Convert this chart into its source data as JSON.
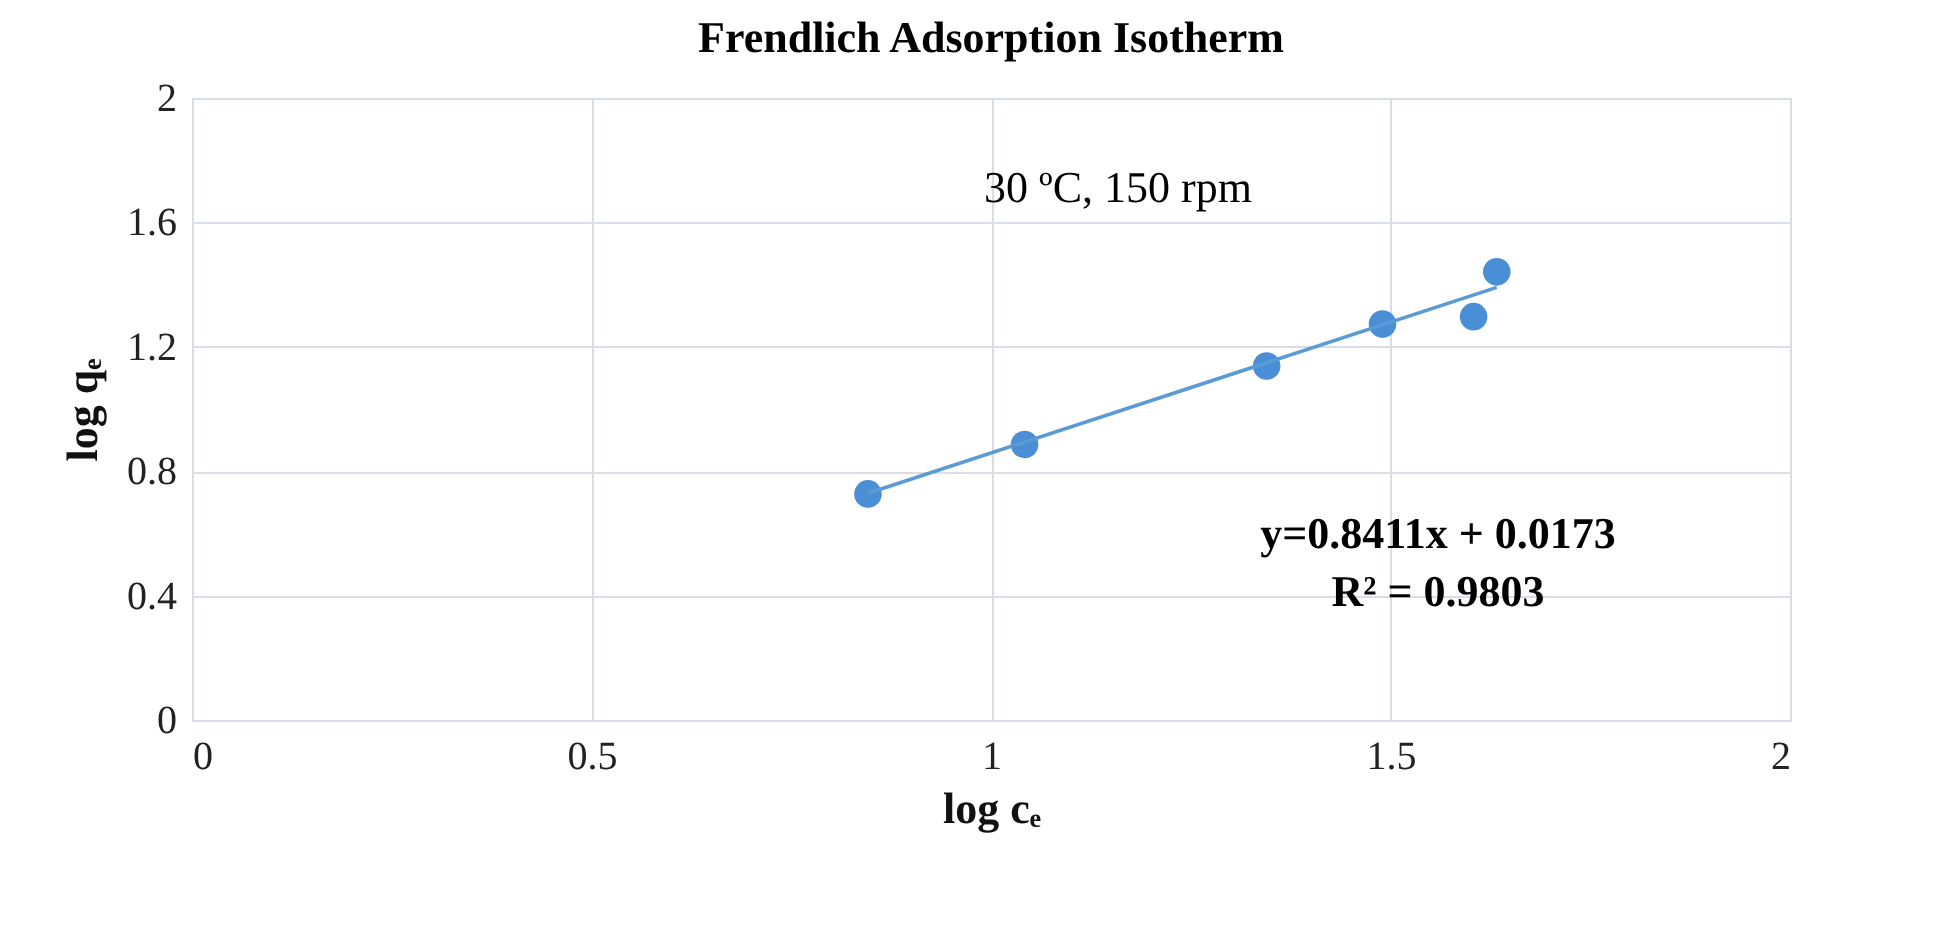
{
  "chart_data": {
    "type": "scatter",
    "title": "Frendlich Adsorption Isotherm",
    "xlabel": "log cₑ",
    "ylabel": "log qₑ",
    "series": [
      {
        "color": "#4a8fd6",
        "x": [
          0.846,
          1.042,
          1.345,
          1.49,
          1.604,
          1.633
        ],
        "values": [
          0.727,
          0.886,
          1.138,
          1.273,
          1.297,
          1.441
        ]
      },
      {
        "type": "line",
        "marker": "none",
        "color": "#5b9bd5",
        "x": [
          0.846,
          1.633
        ],
        "values": [
          0.729,
          1.391
        ]
      }
    ],
    "xlim": [
      0,
      2
    ],
    "xticks": [
      0,
      0.5,
      1,
      1.5,
      2
    ],
    "ylim": [
      0,
      2
    ],
    "yticks": [
      0,
      0.4,
      0.8,
      1.2,
      1.6,
      2
    ],
    "grid": true,
    "marker": "circle",
    "annotations": [
      "30 ºC, 150 rpm",
      "y=0.8411x + 0.0173",
      "R² = 0.9803"
    ]
  }
}
